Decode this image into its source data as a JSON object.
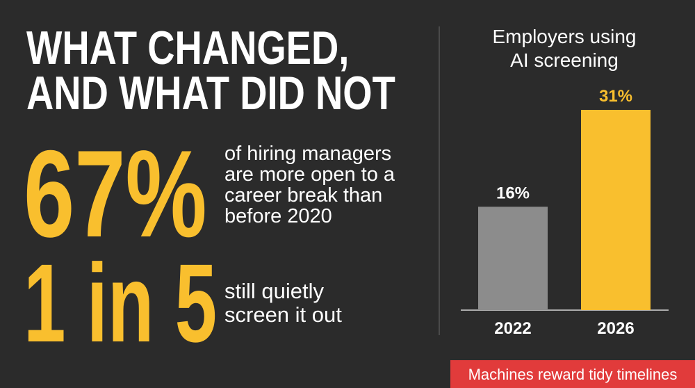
{
  "headline": [
    "WHAT CHANGED,",
    "AND WHAT DID NOT"
  ],
  "stats": [
    {
      "figure": "67%",
      "text": [
        "of hiring managers",
        "are more open to a",
        "career break than",
        "before 2020"
      ]
    },
    {
      "figure": "1 in 5",
      "text": [
        "still quietly",
        "screen it out"
      ]
    }
  ],
  "chart_data": {
    "type": "bar",
    "title": [
      "Employers using",
      "AI screening"
    ],
    "categories": [
      "2022",
      "2026"
    ],
    "values": [
      16,
      31
    ],
    "value_labels": [
      "16%",
      "31%"
    ],
    "colors": [
      "#8c8c8c",
      "#f9bf2e"
    ]
  },
  "footer": "Machines reward tidy timelines"
}
